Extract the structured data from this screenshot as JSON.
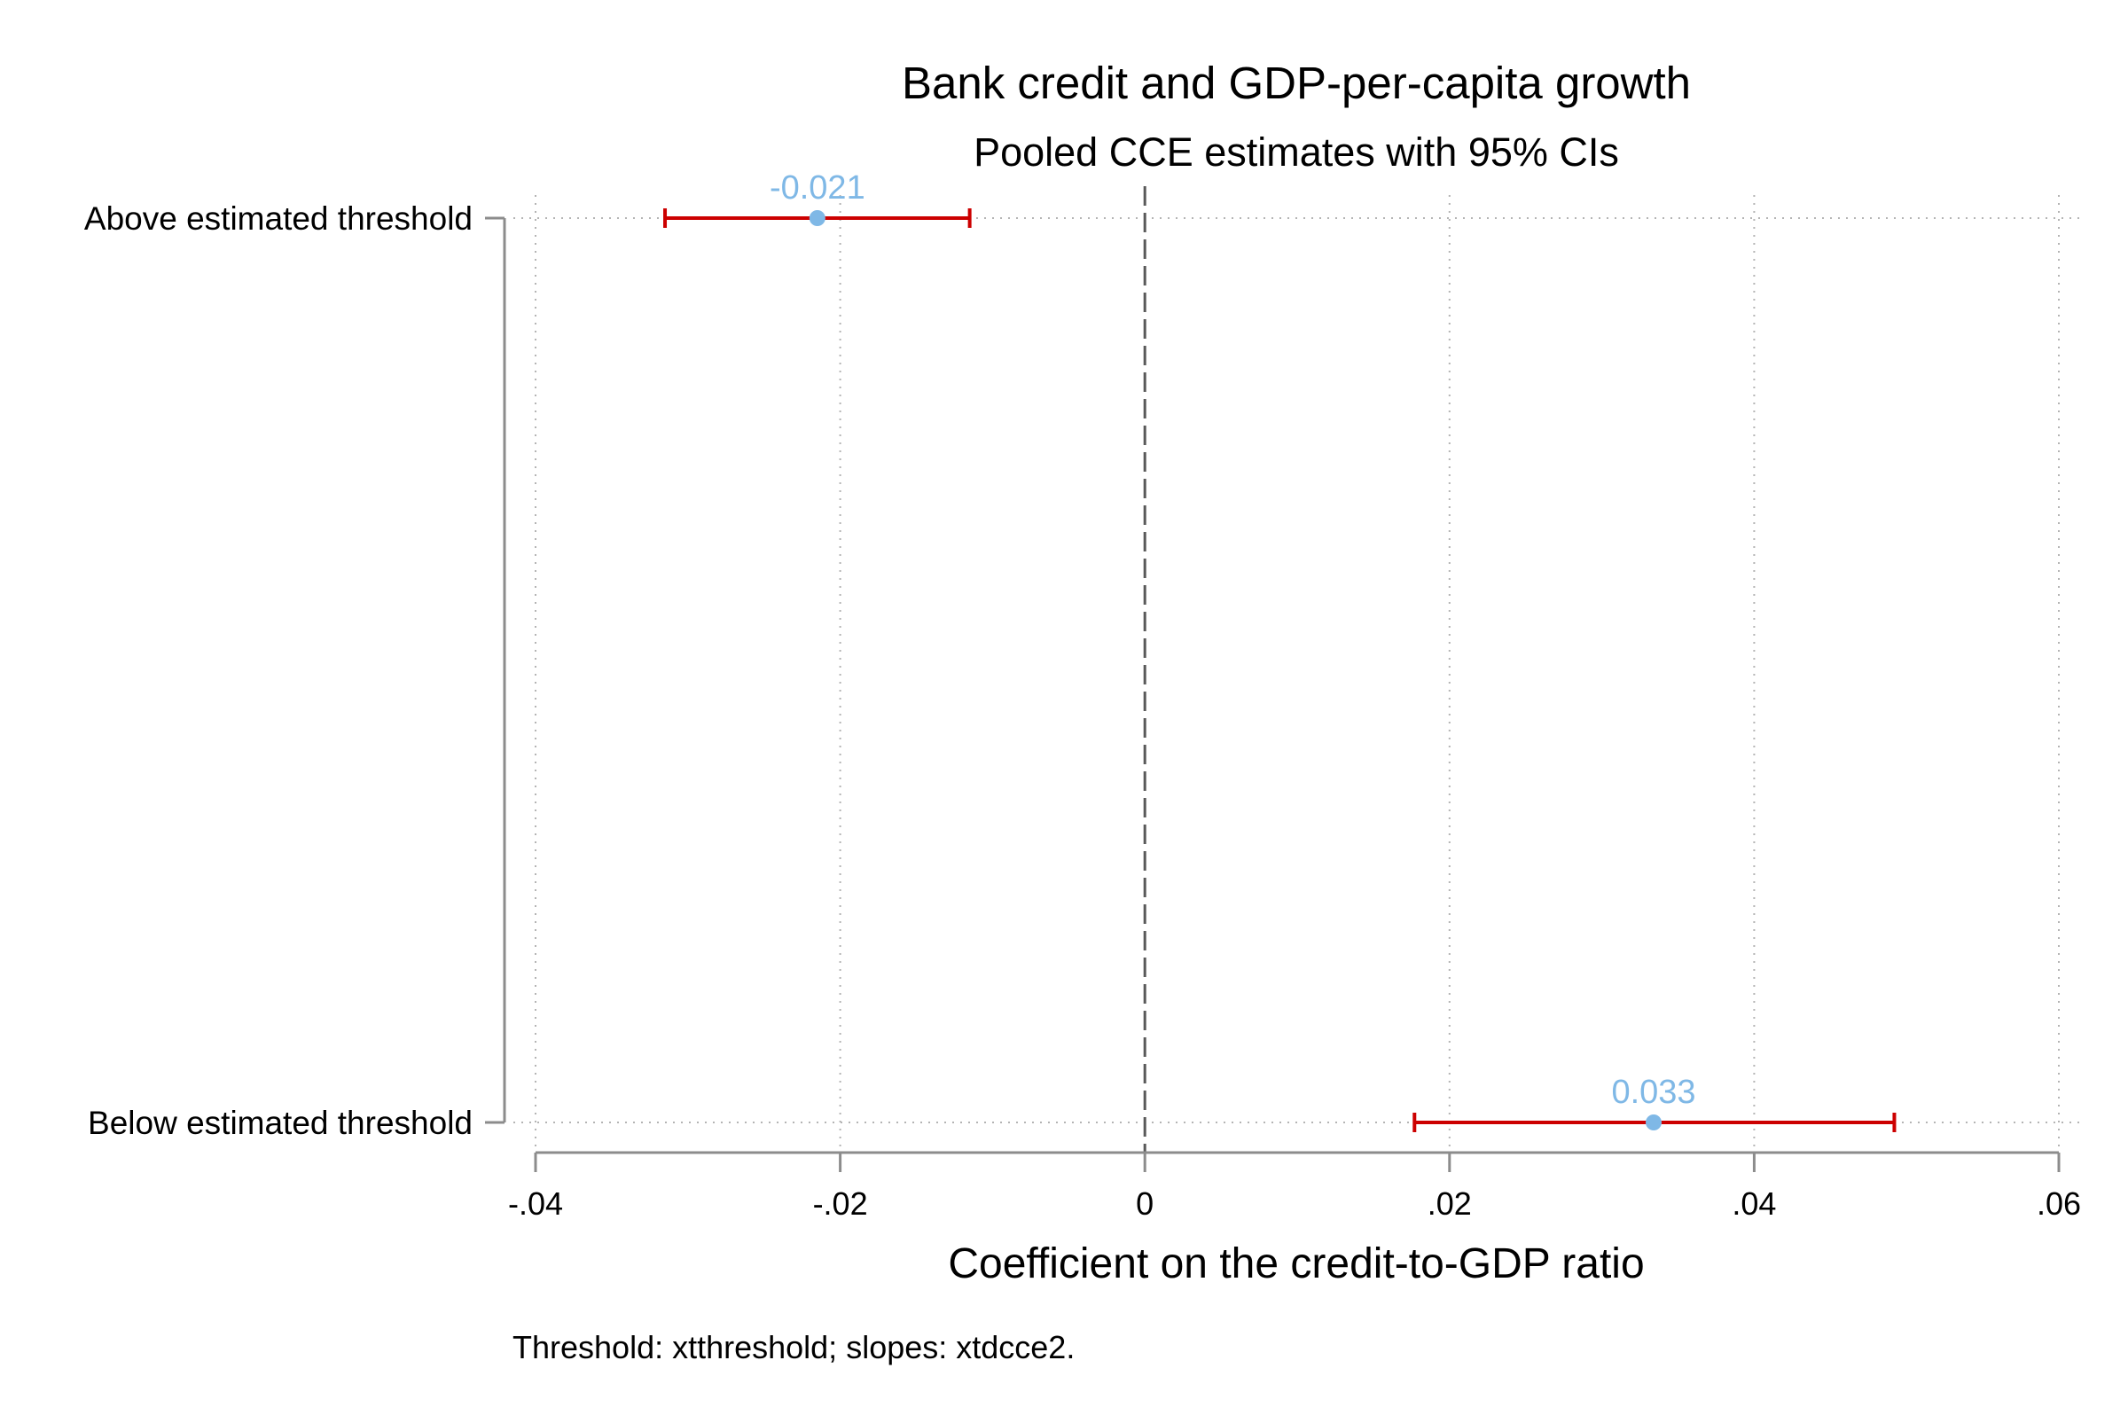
{
  "chart_data": {
    "type": "scatter",
    "title": "Bank credit and GDP-per-capita growth",
    "subtitle": "Pooled CCE estimates with 95% CIs",
    "xlabel": "Coefficient on the credit-to-GDP ratio",
    "ylabel": "",
    "note": "Threshold: xtthreshold; slopes: xtdcce2.",
    "xlim": [
      -0.04,
      0.06
    ],
    "x_ticks": [
      {
        "value": -0.04,
        "label": "-.04"
      },
      {
        "value": -0.02,
        "label": "-.02"
      },
      {
        "value": 0,
        "label": "0"
      },
      {
        "value": 0.02,
        "label": ".02"
      },
      {
        "value": 0.04,
        "label": ".04"
      },
      {
        "value": 0.06,
        "label": ".06"
      }
    ],
    "categories": [
      "Above estimated threshold",
      "Below estimated threshold"
    ],
    "estimates": [
      {
        "category": "Above estimated threshold",
        "estimate": -0.0215,
        "ci_low": -0.0315,
        "ci_high": -0.0115,
        "label": "-0.021"
      },
      {
        "category": "Below estimated threshold",
        "estimate": 0.0334,
        "ci_low": 0.0177,
        "ci_high": 0.0492,
        "label": "0.033"
      }
    ],
    "reference_line": {
      "x": 0,
      "style": "dashed"
    },
    "grid": true,
    "colors": {
      "point": "#7fb8e6",
      "ci": "#cc0000",
      "label": "#7fb8e6",
      "axis": "#8c8c8c",
      "grid": "#b4b4b4",
      "reference": "#595959",
      "text": "#000000"
    }
  }
}
